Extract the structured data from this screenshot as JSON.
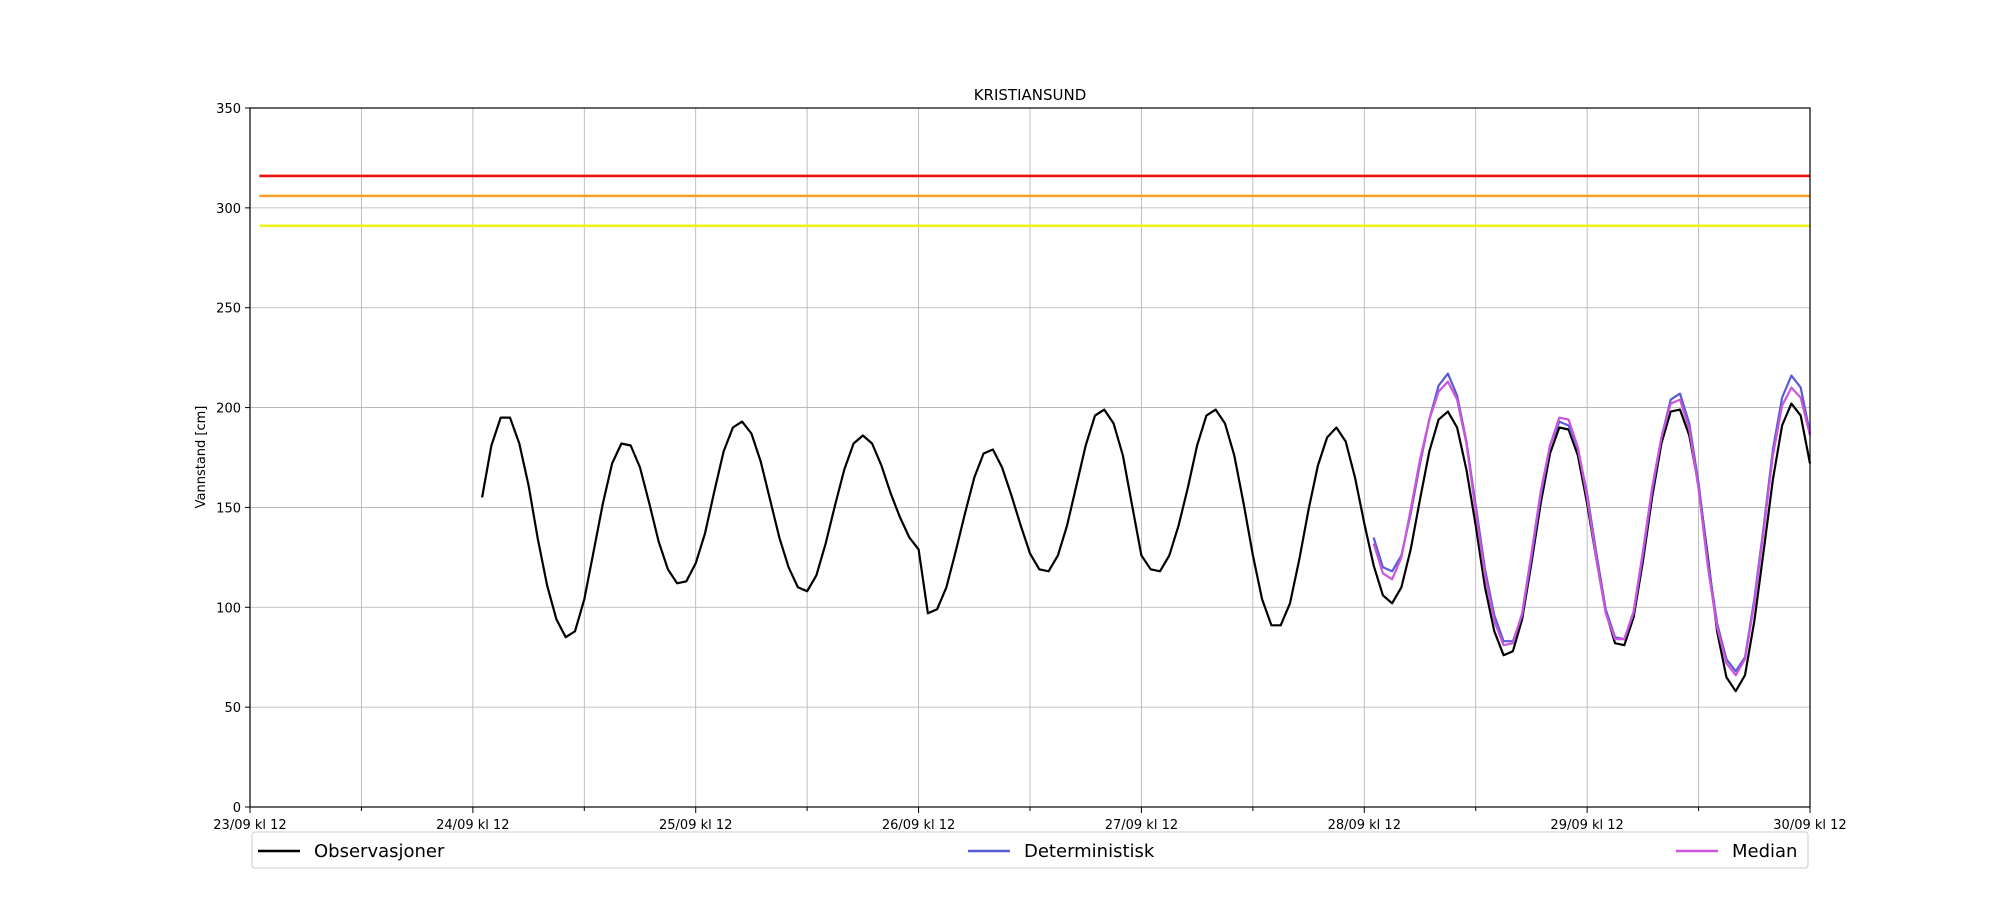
{
  "chart_data": {
    "type": "line",
    "title": "KRISTIANSUND",
    "ylabel": "Vannstand [cm]",
    "xlabel": "",
    "ylim": [
      0,
      350
    ],
    "yticks": [
      0,
      50,
      100,
      150,
      200,
      250,
      300,
      350
    ],
    "x_tick_labels": [
      "23/09 kl 12",
      "24/09 kl 12",
      "25/09 kl 12",
      "26/09 kl 12",
      "27/09 kl 12",
      "28/09 kl 12",
      "29/09 kl 12",
      "30/09 kl 12"
    ],
    "x_unit": "hours after 23/09 kl 12",
    "xlim": [
      0,
      168
    ],
    "grid": true,
    "legend_placement": "bottom, below plot",
    "thresholds": [
      {
        "value": 316,
        "color": "#ee1111"
      },
      {
        "value": 306,
        "color": "#f5a020"
      },
      {
        "value": 291,
        "color": "#f0f020"
      }
    ],
    "series": [
      {
        "name": "Observasjoner",
        "color": "#000000",
        "x": [
          25,
          26,
          27,
          28,
          29,
          30,
          31,
          32,
          33,
          34,
          35,
          36,
          37,
          38,
          39,
          40,
          41,
          42,
          43,
          44,
          45,
          46,
          47,
          48,
          49,
          50,
          51,
          52,
          53,
          54,
          55,
          56,
          57,
          58,
          59,
          60,
          61,
          62,
          63,
          64,
          65,
          66,
          67,
          68,
          69,
          70,
          71,
          72,
          73,
          74,
          75,
          76,
          77,
          78,
          79,
          80,
          81,
          82,
          83,
          84,
          85,
          86,
          87,
          88,
          89,
          90,
          91,
          92,
          93,
          94,
          95,
          96,
          97,
          98,
          99,
          100,
          101,
          102,
          103,
          104,
          105,
          106,
          107,
          108,
          109,
          110,
          111,
          112,
          113,
          114,
          115,
          116,
          117,
          118,
          119,
          120,
          121,
          122,
          123,
          124,
          125,
          126,
          127,
          128,
          129,
          130,
          131,
          132,
          133,
          134,
          135,
          136,
          137,
          138,
          139,
          140,
          141,
          142,
          143,
          144,
          145,
          146,
          147,
          148,
          149,
          150,
          151,
          152,
          153,
          154,
          155,
          156,
          157,
          158,
          159,
          160,
          161,
          162,
          163,
          164,
          165,
          166,
          167,
          168
        ],
        "values": [
          155,
          181,
          195,
          195,
          182,
          161,
          134,
          111,
          94,
          85,
          88,
          104,
          128,
          152,
          172,
          182,
          181,
          170,
          152,
          133,
          119,
          112,
          113,
          122,
          137,
          158,
          178,
          190,
          193,
          187,
          173,
          154,
          135,
          120,
          110,
          108,
          116,
          132,
          151,
          169,
          182,
          186,
          182,
          171,
          157,
          145,
          135,
          129,
          97,
          99,
          110,
          128,
          147,
          165,
          177,
          179,
          170,
          156,
          141,
          127,
          119,
          118,
          126,
          141,
          161,
          181,
          196,
          199,
          192,
          176,
          151,
          126,
          119,
          118,
          126,
          141,
          160,
          181,
          196,
          199,
          192,
          176,
          152,
          126,
          104,
          91,
          91,
          102,
          124,
          149,
          171,
          185,
          190,
          183,
          165,
          142,
          121,
          106,
          102,
          110,
          129,
          154,
          178,
          194,
          198,
          190,
          169,
          141,
          110,
          88,
          76,
          78,
          94,
          122,
          152,
          177,
          190,
          189,
          176,
          152,
          124,
          98,
          82,
          81,
          95,
          123,
          155,
          182,
          198,
          199,
          186,
          161,
          125,
          88,
          65,
          58,
          66,
          93,
          128,
          164,
          191,
          202,
          196,
          172
        ]
      },
      {
        "name": "Deterministisk",
        "color": "#5b5bd6",
        "x": [
          121,
          122,
          123,
          124,
          125,
          126,
          127,
          128,
          129,
          130,
          131,
          132,
          133,
          134,
          135,
          136,
          137,
          138,
          139,
          140,
          141,
          142,
          143,
          144,
          145,
          146,
          147,
          148,
          149,
          150,
          151,
          152,
          153,
          154,
          155,
          156,
          157,
          158,
          159,
          160,
          161,
          162,
          163,
          164,
          165,
          166,
          167,
          168
        ],
        "values": [
          135,
          120,
          118,
          126,
          147,
          172,
          194,
          211,
          217,
          206,
          183,
          151,
          119,
          96,
          83,
          83,
          96,
          125,
          156,
          181,
          193,
          191,
          179,
          157,
          127,
          99,
          85,
          84,
          97,
          126,
          158,
          185,
          204,
          207,
          192,
          162,
          123,
          92,
          74,
          68,
          75,
          104,
          140,
          179,
          205,
          216,
          210,
          187
        ]
      },
      {
        "name": "Median",
        "color": "#cc55dd",
        "x": [
          121,
          122,
          123,
          124,
          125,
          126,
          127,
          128,
          129,
          130,
          131,
          132,
          133,
          134,
          135,
          136,
          137,
          138,
          139,
          140,
          141,
          142,
          143,
          144,
          145,
          146,
          147,
          148,
          149,
          150,
          151,
          152,
          153,
          154,
          155,
          156,
          157,
          158,
          159,
          160,
          161,
          162,
          163,
          164,
          165,
          166,
          167,
          168
        ],
        "values": [
          132,
          117,
          114,
          125,
          149,
          174,
          194,
          208,
          213,
          204,
          182,
          148,
          116,
          93,
          81,
          82,
          97,
          127,
          158,
          181,
          195,
          194,
          180,
          155,
          124,
          97,
          84,
          84,
          98,
          128,
          160,
          185,
          202,
          204,
          189,
          159,
          120,
          90,
          72,
          66,
          74,
          102,
          138,
          176,
          201,
          210,
          205,
          186
        ]
      }
    ]
  }
}
